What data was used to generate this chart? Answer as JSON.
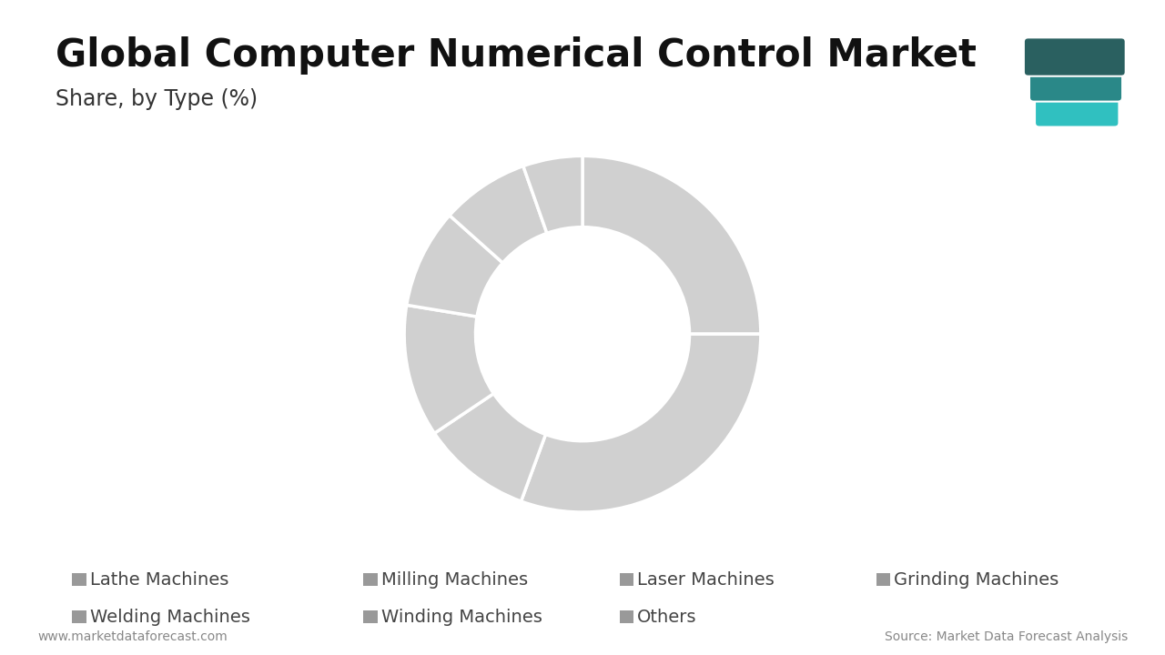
{
  "title": "Global Computer Numerical Control Market",
  "subtitle": "Share, by Type (%)",
  "segments": [
    {
      "label": "Lathe Machines",
      "value": 25.0
    },
    {
      "label": "Milling Machines",
      "value": 30.6
    },
    {
      "label": "Laser Machines",
      "value": 10.0
    },
    {
      "label": "Grinding Machines",
      "value": 12.0
    },
    {
      "label": "Welding Machines",
      "value": 9.0
    },
    {
      "label": "Winding Machines",
      "value": 8.0
    },
    {
      "label": "Others",
      "value": 5.4
    }
  ],
  "donut_color": "#d0d0d0",
  "background_color": "#ffffff",
  "title_fontsize": 30,
  "subtitle_fontsize": 17,
  "legend_fontsize": 14,
  "footer_left": "www.marketdataforecast.com",
  "footer_right": "Source: Market Data Forecast Analysis",
  "footer_fontsize": 10,
  "title_bar_color": "#3aadad",
  "legend_color": "#999999",
  "logo_colors": [
    "#2a6060",
    "#2a8888",
    "#30c0c0"
  ],
  "wedge_linewidth": 2.5,
  "legend_row1": [
    "Lathe Machines",
    "Milling Machines",
    "Laser Machines",
    "Grinding Machines"
  ],
  "legend_row2": [
    "Welding Machines",
    "Winding Machines",
    "Others"
  ],
  "legend_cols_row1": [
    0.08,
    0.33,
    0.55,
    0.77
  ],
  "legend_cols_row2": [
    0.08,
    0.33,
    0.55
  ]
}
